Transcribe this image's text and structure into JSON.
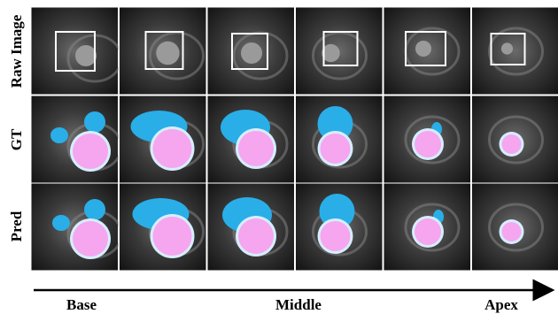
{
  "row_labels": [
    "Raw Image",
    "GT",
    "Pred"
  ],
  "axis_labels": [
    "Base",
    "Middle",
    "Apex"
  ]
}
